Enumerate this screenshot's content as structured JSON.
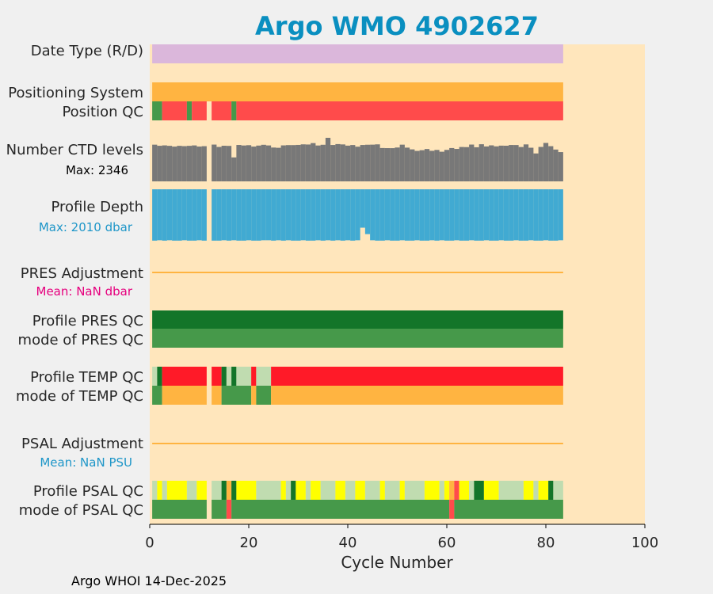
{
  "chart_data": {
    "type": "heatmap",
    "title": "Argo WMO 4902627",
    "xlabel": "Cycle Number",
    "xlim": [
      0,
      100
    ],
    "xticks": [
      "0",
      "20",
      "40",
      "60",
      "80",
      "100"
    ],
    "cycles_range": [
      1,
      83
    ],
    "missing_cycles": [
      12
    ],
    "colors": {
      "background": "#ffe6bc",
      "title": "#0a8fc0",
      "pink": "#e6007e",
      "blue_text": "#1e96c8",
      "orange": "#ffb441",
      "lilac": "#dbb7db",
      "red": "#ff4b4b",
      "red_bright": "#ff1a28",
      "dark_green": "#137529",
      "green": "#46994a",
      "light_green": "#c0dcb0",
      "yellow": "#ffff00",
      "gray": "#787878",
      "depth_blue": "#41aad2"
    },
    "rows": [
      {
        "id": "date-type",
        "label": "Date Type (R/D)",
        "segments": [
          {
            "start": 1,
            "end": 83,
            "color": "lilac"
          }
        ]
      },
      {
        "id": "positioning-system",
        "label": "Positioning System",
        "segments": [
          {
            "start": 1,
            "end": 83,
            "color": "orange"
          }
        ]
      },
      {
        "id": "position-qc",
        "label": "Position QC",
        "segments": [
          {
            "start": 1,
            "end": 2,
            "color": "green"
          },
          {
            "start": 3,
            "end": 7,
            "color": "red"
          },
          {
            "start": 8,
            "end": 8,
            "color": "green"
          },
          {
            "start": 9,
            "end": 11,
            "color": "red"
          },
          {
            "start": 13,
            "end": 16,
            "color": "red"
          },
          {
            "start": 17,
            "end": 17,
            "color": "green"
          },
          {
            "start": 18,
            "end": 83,
            "color": "red"
          }
        ]
      },
      {
        "id": "profile-pres-qc",
        "label": "Profile PRES QC",
        "segments": [
          {
            "start": 1,
            "end": 83,
            "color": "dark_green"
          }
        ]
      },
      {
        "id": "mode-pres-qc",
        "label": "mode of PRES QC",
        "segments": [
          {
            "start": 1,
            "end": 83,
            "color": "green"
          }
        ]
      },
      {
        "id": "profile-temp-qc",
        "label": "Profile TEMP QC",
        "segments": [
          {
            "start": 1,
            "end": 1,
            "color": "light_green"
          },
          {
            "start": 2,
            "end": 2,
            "color": "dark_green"
          },
          {
            "start": 3,
            "end": 11,
            "color": "red_bright"
          },
          {
            "start": 13,
            "end": 14,
            "color": "red_bright"
          },
          {
            "start": 15,
            "end": 15,
            "color": "dark_green"
          },
          {
            "start": 16,
            "end": 16,
            "color": "light_green"
          },
          {
            "start": 17,
            "end": 17,
            "color": "dark_green"
          },
          {
            "start": 18,
            "end": 20,
            "color": "light_green"
          },
          {
            "start": 21,
            "end": 21,
            "color": "red_bright"
          },
          {
            "start": 22,
            "end": 24,
            "color": "light_green"
          },
          {
            "start": 25,
            "end": 83,
            "color": "red_bright"
          }
        ]
      },
      {
        "id": "mode-temp-qc",
        "label": "mode of TEMP QC",
        "segments": [
          {
            "start": 1,
            "end": 2,
            "color": "green"
          },
          {
            "start": 3,
            "end": 11,
            "color": "orange"
          },
          {
            "start": 13,
            "end": 14,
            "color": "orange"
          },
          {
            "start": 15,
            "end": 20,
            "color": "green"
          },
          {
            "start": 21,
            "end": 21,
            "color": "orange"
          },
          {
            "start": 22,
            "end": 24,
            "color": "green"
          },
          {
            "start": 25,
            "end": 83,
            "color": "orange"
          }
        ]
      },
      {
        "id": "profile-psal-qc",
        "label": "Profile PSAL QC",
        "segments": [
          {
            "start": 1,
            "end": 1,
            "color": "light_green"
          },
          {
            "start": 2,
            "end": 2,
            "color": "yellow"
          },
          {
            "start": 3,
            "end": 3,
            "color": "light_green"
          },
          {
            "start": 4,
            "end": 7,
            "color": "yellow"
          },
          {
            "start": 8,
            "end": 9,
            "color": "light_green"
          },
          {
            "start": 10,
            "end": 11,
            "color": "yellow"
          },
          {
            "start": 13,
            "end": 14,
            "color": "light_green"
          },
          {
            "start": 15,
            "end": 15,
            "color": "dark_green"
          },
          {
            "start": 16,
            "end": 16,
            "color": "orange"
          },
          {
            "start": 17,
            "end": 17,
            "color": "dark_green"
          },
          {
            "start": 18,
            "end": 21,
            "color": "yellow"
          },
          {
            "start": 22,
            "end": 26,
            "color": "light_green"
          },
          {
            "start": 27,
            "end": 27,
            "color": "yellow"
          },
          {
            "start": 28,
            "end": 28,
            "color": "light_green"
          },
          {
            "start": 29,
            "end": 29,
            "color": "dark_green"
          },
          {
            "start": 30,
            "end": 31,
            "color": "yellow"
          },
          {
            "start": 32,
            "end": 32,
            "color": "light_green"
          },
          {
            "start": 33,
            "end": 34,
            "color": "yellow"
          },
          {
            "start": 35,
            "end": 37,
            "color": "light_green"
          },
          {
            "start": 38,
            "end": 39,
            "color": "yellow"
          },
          {
            "start": 40,
            "end": 41,
            "color": "light_green"
          },
          {
            "start": 42,
            "end": 43,
            "color": "yellow"
          },
          {
            "start": 44,
            "end": 46,
            "color": "light_green"
          },
          {
            "start": 47,
            "end": 47,
            "color": "yellow"
          },
          {
            "start": 48,
            "end": 50,
            "color": "light_green"
          },
          {
            "start": 51,
            "end": 51,
            "color": "yellow"
          },
          {
            "start": 52,
            "end": 55,
            "color": "light_green"
          },
          {
            "start": 56,
            "end": 58,
            "color": "yellow"
          },
          {
            "start": 59,
            "end": 59,
            "color": "light_green"
          },
          {
            "start": 60,
            "end": 60,
            "color": "yellow"
          },
          {
            "start": 61,
            "end": 61,
            "color": "orange"
          },
          {
            "start": 62,
            "end": 62,
            "color": "red"
          },
          {
            "start": 63,
            "end": 64,
            "color": "yellow"
          },
          {
            "start": 65,
            "end": 65,
            "color": "light_green"
          },
          {
            "start": 66,
            "end": 67,
            "color": "dark_green"
          },
          {
            "start": 68,
            "end": 70,
            "color": "yellow"
          },
          {
            "start": 71,
            "end": 75,
            "color": "light_green"
          },
          {
            "start": 76,
            "end": 77,
            "color": "yellow"
          },
          {
            "start": 78,
            "end": 78,
            "color": "light_green"
          },
          {
            "start": 79,
            "end": 80,
            "color": "yellow"
          },
          {
            "start": 81,
            "end": 81,
            "color": "dark_green"
          },
          {
            "start": 82,
            "end": 83,
            "color": "light_green"
          }
        ]
      },
      {
        "id": "mode-psal-qc",
        "label": "mode of PSAL QC",
        "segments": [
          {
            "start": 1,
            "end": 11,
            "color": "green"
          },
          {
            "start": 13,
            "end": 15,
            "color": "green"
          },
          {
            "start": 16,
            "end": 16,
            "color": "red"
          },
          {
            "start": 17,
            "end": 60,
            "color": "green"
          },
          {
            "start": 61,
            "end": 61,
            "color": "red"
          },
          {
            "start": 62,
            "end": 83,
            "color": "green"
          }
        ]
      }
    ],
    "ctd_levels": {
      "label": "Number CTD levels",
      "max_label": "Max: 2346",
      "max": 2346,
      "values": [
        1976,
        1917,
        1938,
        1914,
        1873,
        1914,
        1897,
        1914,
        1936,
        1875,
        1895,
        null,
        1981,
        1854,
        1919,
        1911,
        1291,
        1961,
        1932,
        1949,
        1874,
        1927,
        1970,
        1935,
        1822,
        1808,
        1938,
        1953,
        1953,
        1964,
        1994,
        1985,
        2061,
        1932,
        1971,
        2346,
        1960,
        2008,
        1990,
        1924,
        1957,
        1868,
        1960,
        1973,
        1978,
        1994,
        1796,
        1790,
        1788,
        1824,
        1977,
        1817,
        1723,
        1641,
        1678,
        1743,
        1646,
        1694,
        1596,
        1696,
        1795,
        1747,
        1851,
        1845,
        1982,
        1837,
        2000,
        1880,
        1940,
        1885,
        1924,
        1920,
        1959,
        1957,
        1850,
        1991,
        1812,
        1504,
        1855,
        2070,
        1895,
        1713,
        1576
      ]
    },
    "profile_depth": {
      "label": "Profile Depth",
      "max_label": "Max: 2010 dbar",
      "max": 2010,
      "values": [
        2005,
        1990,
        2005,
        1990,
        2005,
        2005,
        1990,
        2005,
        2005,
        1990,
        2005,
        null,
        2005,
        2005,
        1990,
        2005,
        1990,
        2005,
        2005,
        1990,
        2005,
        2005,
        1990,
        1990,
        2005,
        1990,
        2005,
        1990,
        2005,
        2005,
        1990,
        2005,
        2005,
        1990,
        2005,
        1990,
        2005,
        1990,
        2005,
        1990,
        2005,
        1990,
        1500,
        1750,
        1990,
        2005,
        2005,
        1990,
        2005,
        2005,
        1990,
        2005,
        2005,
        1990,
        2005,
        2005,
        1990,
        2005,
        1990,
        2005,
        2005,
        1990,
        2005,
        2005,
        1990,
        2005,
        2005,
        1990,
        2005,
        2005,
        1990,
        2005,
        2005,
        1990,
        2005,
        2005,
        1990,
        2005,
        2005,
        1990,
        2005,
        2005,
        1990
      ]
    },
    "pres_adjustment": {
      "label": "PRES Adjustment",
      "mean_label": "Mean:  NaN dbar"
    },
    "psal_adjustment": {
      "label": "PSAL Adjustment",
      "mean_label": "Mean:  NaN PSU"
    }
  },
  "footer": "Argo WHOI 14-Dec-2025"
}
